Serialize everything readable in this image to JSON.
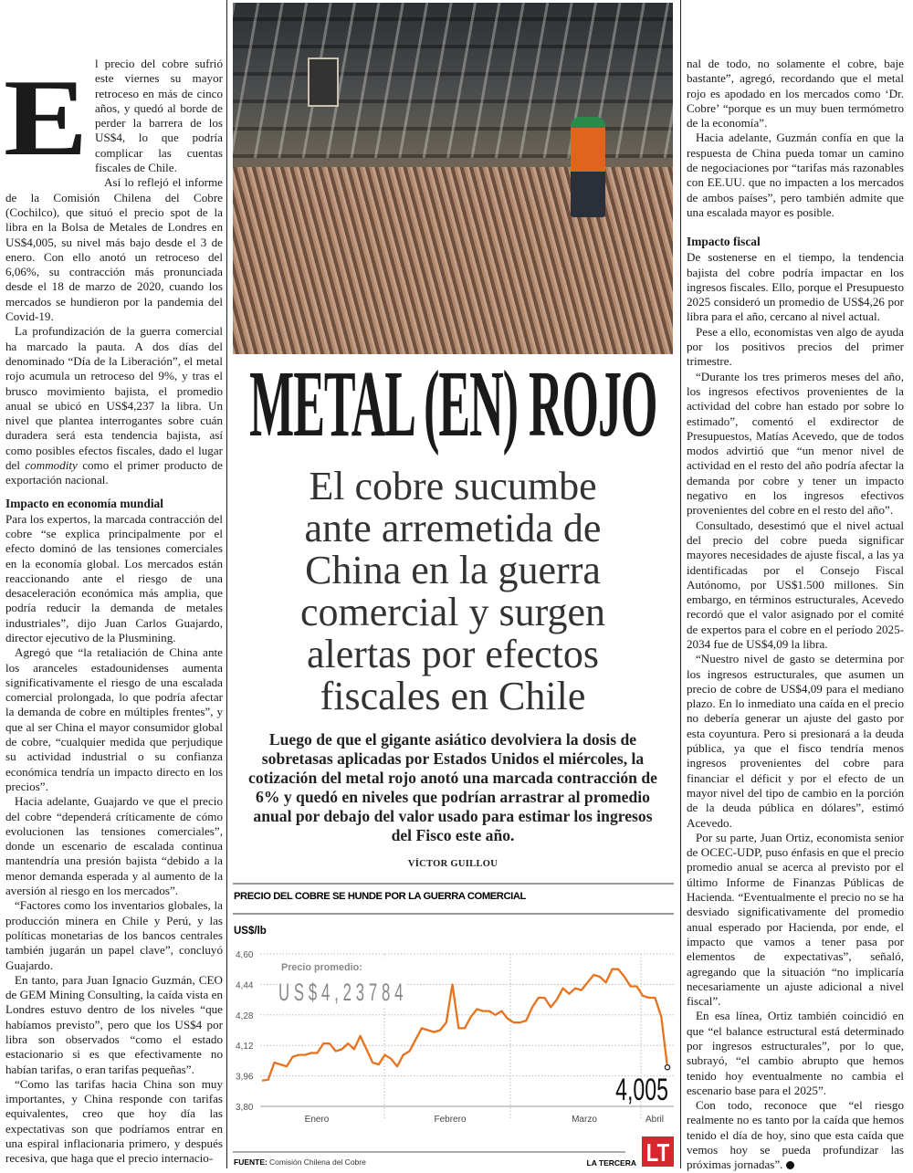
{
  "article": {
    "drop_cap": "E",
    "left_column": {
      "intro": "l precio del cobre sufrió este viernes su mayor retroceso en más de cinco años, y quedó al borde de perder la barrera de los US$4, lo que podría complicar las cuentas fiscales de Chile.",
      "p1": "Así lo reflejó el informe de la Comisión Chilena del Cobre (Cochilco), que situó el precio spot de la libra en la Bolsa de Metales de Londres en US$4,005, su nivel más bajo desde el 3 de enero. Con ello anotó un retroceso del 6,06%, su contracción más pronunciada desde el 18 de marzo de 2020, cuando los mercados se hundieron por la pandemia del Covid-19.",
      "p2_before_italic": "La profundización de la guerra comercial ha marcado la pauta. A dos días del denominado “Día de la Liberación”, el metal rojo acumula un retroceso del 9%, y tras el brusco movimiento bajista, el promedio anual se ubicó en US$4,237 la libra. Un nivel que plantea interrogantes sobre cuán duradera será esta tendencia bajista, así como posibles efectos fiscales, dado el lugar del ",
      "p2_italic": "commodity",
      "p2_after_italic": " como el primer producto de exportación nacional.",
      "subhead": "Impacto en economía mundial",
      "p3": "Para los expertos, la marcada contracción del cobre “se explica principalmente por el efecto dominó de las tensiones comerciales en la economía global. Los mercados están reaccionando ante el riesgo de una desaceleración económica más amplia, que podría reducir la demanda de metales industriales”, dijo Juan Carlos Guajardo, director ejecutivo de la Plusmining.",
      "p4": "Agregó que “la retaliación de China ante los aranceles estadounidenses aumenta significativamente el riesgo de una escalada comercial prolongada, lo que podría afectar la demanda de cobre en múltiples frentes”, y que al ser China el mayor consumidor global de cobre, “cualquier medida que perjudique su actividad industrial o su confianza económica tendría un impacto directo en los precios”.",
      "p5": "Hacia adelante, Guajardo ve que el precio del cobre “dependerá críticamente de cómo evolucionen las tensiones comerciales”, donde un escenario de escalada continua mantendría una presión bajista “debido a la menor demanda esperada y al aumento de la aversión al riesgo en los mercados”.",
      "p6": "“Factores como los inventarios globales, la producción minera en Chile y Perú, y las políticas monetarias de los bancos centrales también jugarán un papel clave”, concluyó Guajardo.",
      "p7": "En tanto, para Juan Ignacio Guzmán, CEO de GEM Mining Consulting, la caída vista en Londres estuvo dentro de los niveles “que habíamos previsto”, pero que los US$4 por libra son observados “como el estado estacionario si es que efectivamente no habían tarifas, o eran tarifas pequeñas”.",
      "p8": "“Como las tarifas hacia China son muy importantes, y China responde con tarifas equivalentes, creo que hoy día las expectativas son que podríamos entrar en una espiral inflacionaria primero, y después recesiva, que haga que el precio internacio-"
    },
    "right_column": {
      "p1": "nal de todo, no solamente el cobre, baje bastante”, agregó, recordando que el metal rojo es apodado en los mercados como ‘Dr. Cobre’ “porque es un muy buen termómetro de la economía”.",
      "p2": "Hacia adelante, Guzmán confía en que la respuesta de China pueda tomar un camino de negociaciones por “tarifas más razonables con EE.UU. que no impacten a los mercados de ambos países”, pero también admite que una escalada mayor es posible.",
      "subhead": "Impacto fiscal",
      "p3": "De sostenerse en el tiempo, la tendencia bajista del cobre podría impactar en los ingresos fiscales. Ello, porque el Presupuesto 2025 consideró un promedio de US$4,26 por libra para el año, cercano al nivel actual.",
      "p4": "Pese a ello, economistas ven algo de ayuda por los positivos precios del primer trimestre.",
      "p5": "“Durante los tres primeros meses del año, los ingresos efectivos provenientes de la actividad del cobre han estado por sobre lo estimado”, comentó el exdirector de Presupuestos, Matías Acevedo, que de todos modos advirtió que “un menor nivel de actividad en el resto del año podría afectar la demanda por cobre y tener un impacto negativo en los ingresos efectivos provenientes del cobre en el resto del año”.",
      "p6": "Consultado, desestimó que el nivel actual del precio del cobre pueda significar mayores necesidades de ajuste fiscal, a las ya identificadas por el Consejo Fiscal Autónomo, por US$1.500 millones. Sin embargo, en términos estructurales, Acevedo recordó que el valor asignado por el comité de expertos para el cobre en el período 2025-2034 fue de US$4,09 la libra.",
      "p7": "“Nuestro nivel de gasto se determina por los ingresos estructurales, que asumen un precio de cobre de US$4,09 para el mediano plazo. En lo inmediato una caída en el precio no debería generar un ajuste del gasto por esta coyuntura. Pero si presionará a la deuda pública, ya que el fisco tendría menos ingresos provenientes del cobre para financiar el déficit y por el efecto de un mayor nivel del tipo de cambio en la porción de la deuda pública en dólares”, estimó Acevedo.",
      "p8": "Por su parte, Juan Ortiz, economista senior de OCEC-UDP, puso énfasis en que el precio promedio anual se acerca al previsto por el último Informe de Finanzas Públicas de Hacienda. “Eventualmente el precio no se ha desviado significativamente del promedio anual esperado por Hacienda, por ende, el impacto que vamos a tener pasa por elementos de expectativas”, señaló, agregando que la situación “no implicaría necesariamente un ajuste adicional a nivel fiscal”.",
      "p9": "En esa línea, Ortiz también coincidió en que “el balance estructural está determinado por ingresos estructurales”, por lo que, subrayó, “el cambio abrupto que hemos tenido hoy eventualmente no cambia el escenario base para el 2025”.",
      "p10": "Con todo, reconoce que “el riesgo realmente no es tanto por la caída que hemos tenido el día de hoy, sino que esta caída que vemos hoy se pueda profundizar las próximas jornadas”."
    },
    "headline": "METAL (EN) ROJO",
    "subhead_lines": [
      "El cobre sucumbe",
      "ante arremetida de",
      "China en la guerra",
      "comercial y surgen",
      "alertas por efectos",
      "fiscales en Chile"
    ],
    "deck": "Luego de que el gigante asiático devolviera la dosis de sobretasas aplicadas por Estados Unidos el miércoles, la cotización del metal rojo anotó una marcada contracción de 6% y quedó en niveles que podrían arrastrar al promedio anual por debajo del valor usado para estimar los ingresos del Fisco este año.",
    "byline": "VÍCTOR GUILLOU",
    "end_mark_icon": "end-of-article-icon"
  },
  "chart_data": {
    "type": "line",
    "title": "PRECIO DEL COBRE SE HUNDE POR LA GUERRA COMERCIAL",
    "ylabel": "US$/lb",
    "ylim": [
      3.8,
      4.6
    ],
    "yticks": [
      "4,60",
      "4,44",
      "4,28",
      "4,12",
      "3,96",
      "3,80"
    ],
    "ytick_values": [
      4.6,
      4.44,
      4.28,
      4.12,
      3.96,
      3.8
    ],
    "x_month_labels": [
      "Enero",
      "Febrero",
      "Marzo",
      "Abril"
    ],
    "grid": true,
    "series_color": "#e8731f",
    "values": [
      3.935,
      3.94,
      4.03,
      4.02,
      4.01,
      4.06,
      4.07,
      4.07,
      4.08,
      4.08,
      4.13,
      4.13,
      4.09,
      4.1,
      4.13,
      4.1,
      4.17,
      4.1,
      4.03,
      4.02,
      4.07,
      4.05,
      4.01,
      4.07,
      4.09,
      4.15,
      4.21,
      4.2,
      4.19,
      4.2,
      4.24,
      4.44,
      4.21,
      4.21,
      4.27,
      4.31,
      4.3,
      4.3,
      4.28,
      4.3,
      4.26,
      4.24,
      4.24,
      4.25,
      4.32,
      4.37,
      4.37,
      4.32,
      4.36,
      4.42,
      4.39,
      4.42,
      4.41,
      4.45,
      4.49,
      4.48,
      4.45,
      4.52,
      4.52,
      4.48,
      4.43,
      4.43,
      4.38,
      4.37,
      4.37,
      4.27,
      4.005
    ],
    "average_label": "Precio promedio:",
    "average_value": "US$4,23784",
    "last_value_label": "4,005",
    "source_label": "FUENTE:",
    "source": "Comisión Chilena del Cobre",
    "publisher": "LA TERCERA",
    "logo_text": "LT",
    "logo_color": "#d7262e"
  }
}
